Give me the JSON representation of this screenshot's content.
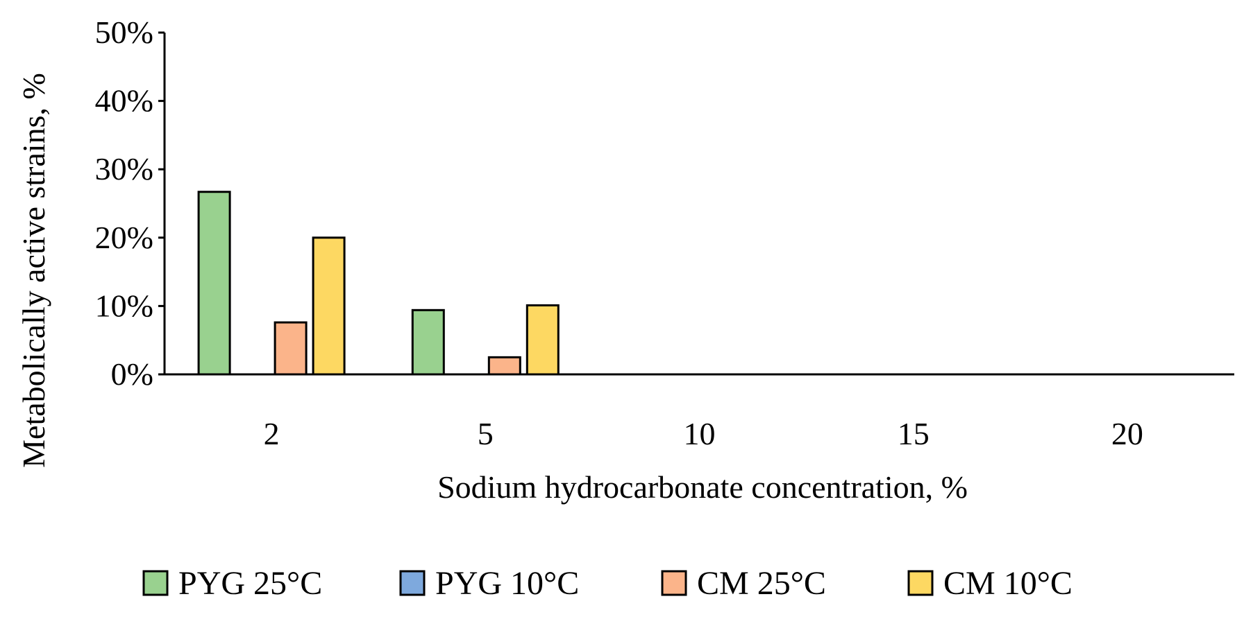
{
  "chart_data": {
    "type": "bar",
    "title": "",
    "xlabel": "Sodium hydrocarbonate concentration, %",
    "ylabel": "Metabolically active strains, %",
    "categories": [
      "2",
      "5",
      "10",
      "15",
      "20"
    ],
    "ylim": [
      0,
      50
    ],
    "yticks": [
      0,
      10,
      20,
      30,
      40,
      50
    ],
    "ytick_labels": [
      "0%",
      "10%",
      "20%",
      "30%",
      "40%",
      "50%"
    ],
    "grid": false,
    "legend_position": "bottom",
    "series": [
      {
        "name": "PYG 25°C",
        "color": "#99d18f",
        "values": [
          26.7,
          9.4,
          0,
          0,
          0
        ]
      },
      {
        "name": "PYG 10°C",
        "color": "#7ea9dd",
        "values": [
          0,
          0,
          0,
          0,
          0
        ]
      },
      {
        "name": "CM 25°C",
        "color": "#fbb48a",
        "values": [
          7.6,
          2.5,
          0,
          0,
          0
        ]
      },
      {
        "name": "CM 10°C",
        "color": "#fdd862",
        "values": [
          20.0,
          10.1,
          0,
          0,
          0
        ]
      }
    ]
  }
}
